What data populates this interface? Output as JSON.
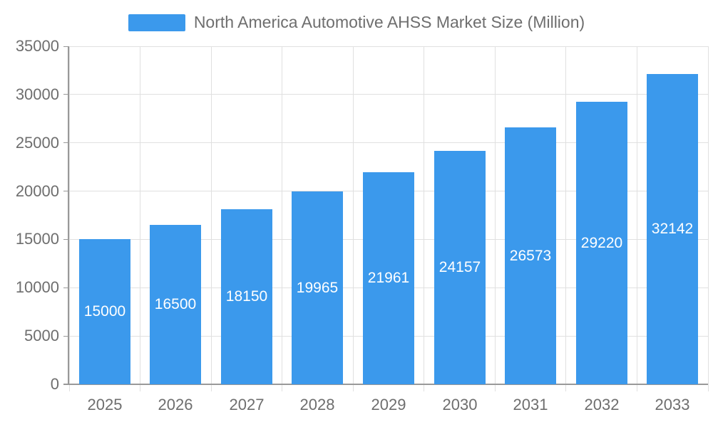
{
  "chart_data": {
    "type": "bar",
    "title": "North America Automotive AHSS Market Size (Million)",
    "legend_label": "North America Automotive AHSS Market Size (Million)",
    "legend_position": "top-center",
    "categories": [
      "2025",
      "2026",
      "2027",
      "2028",
      "2029",
      "2030",
      "2031",
      "2032",
      "2033"
    ],
    "series": [
      {
        "name": "North America Automotive AHSS Market Size (Million)",
        "values": [
          15000,
          16500,
          18150,
          19965,
          21961,
          24157,
          26573,
          29220,
          32142
        ]
      }
    ],
    "xlabel": "",
    "ylabel": "",
    "ylim": [
      0,
      35000
    ],
    "yticks": [
      0,
      5000,
      10000,
      15000,
      20000,
      25000,
      30000,
      35000
    ],
    "grid": true,
    "bar_value_labels_visible": true,
    "colors": {
      "bar": "#3B99EC",
      "gridline": "#E0E0E0",
      "axis_line": "#999999",
      "axis_label": "#6E6E6E",
      "bar_label": "#FFFFFF",
      "background": "#FFFFFF"
    }
  }
}
